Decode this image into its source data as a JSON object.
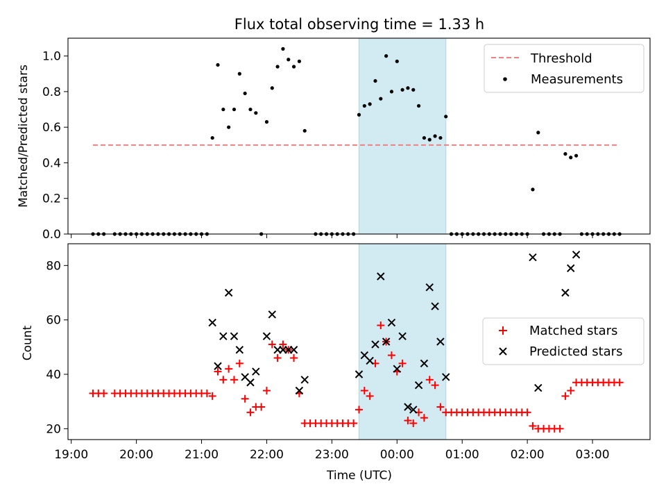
{
  "chart_data": [
    {
      "type": "scatter",
      "title": "Flux total observing time = 1.33 h",
      "xlabel": "",
      "ylabel": "Matched/Predicted stars",
      "ylim": [
        0,
        1.1
      ],
      "yticks": [
        "0.0",
        "0.2",
        "0.4",
        "0.6",
        "0.8",
        "1.0"
      ],
      "grid": false,
      "legend_position": "top-right",
      "legend": [
        "Threshold",
        "Measurements"
      ],
      "threshold": {
        "name": "Threshold",
        "value": 0.5,
        "x_start": "19:20",
        "x_end": "03:25",
        "color": "#f08080"
      },
      "highlight": {
        "start": "23:25",
        "end": "00:45",
        "color": "#add8e6"
      },
      "series": [
        {
          "name": "Measurements",
          "color": "#000000",
          "points": [
            [
              "19:20",
              0
            ],
            [
              "19:25",
              0
            ],
            [
              "19:30",
              0
            ],
            [
              "19:40",
              0
            ],
            [
              "19:45",
              0
            ],
            [
              "19:50",
              0
            ],
            [
              "19:55",
              0
            ],
            [
              "20:00",
              0
            ],
            [
              "20:05",
              0
            ],
            [
              "20:10",
              0
            ],
            [
              "20:15",
              0
            ],
            [
              "20:20",
              0
            ],
            [
              "20:25",
              0
            ],
            [
              "20:30",
              0
            ],
            [
              "20:35",
              0
            ],
            [
              "20:40",
              0
            ],
            [
              "20:45",
              0
            ],
            [
              "20:50",
              0
            ],
            [
              "20:55",
              0
            ],
            [
              "21:00",
              0
            ],
            [
              "21:05",
              0
            ],
            [
              "21:10",
              0.54
            ],
            [
              "21:15",
              0.95
            ],
            [
              "21:20",
              0.7
            ],
            [
              "21:25",
              0.6
            ],
            [
              "21:30",
              0.7
            ],
            [
              "21:35",
              0.9
            ],
            [
              "21:40",
              0.79
            ],
            [
              "21:45",
              0.7
            ],
            [
              "21:50",
              0.68
            ],
            [
              "21:55",
              0
            ],
            [
              "22:00",
              0.63
            ],
            [
              "22:05",
              0.82
            ],
            [
              "22:10",
              0.94
            ],
            [
              "22:15",
              1.04
            ],
            [
              "22:20",
              0.98
            ],
            [
              "22:25",
              0.94
            ],
            [
              "22:30",
              0.97
            ],
            [
              "22:35",
              0.58
            ],
            [
              "22:45",
              0
            ],
            [
              "22:50",
              0
            ],
            [
              "22:55",
              0
            ],
            [
              "23:00",
              0
            ],
            [
              "23:05",
              0
            ],
            [
              "23:10",
              0
            ],
            [
              "23:15",
              0
            ],
            [
              "23:20",
              0
            ],
            [
              "23:25",
              0.67
            ],
            [
              "23:30",
              0.72
            ],
            [
              "23:35",
              0.73
            ],
            [
              "23:40",
              0.86
            ],
            [
              "23:45",
              0.76
            ],
            [
              "23:50",
              1.0
            ],
            [
              "23:55",
              0.8
            ],
            [
              "00:00",
              0.97
            ],
            [
              "00:05",
              0.81
            ],
            [
              "00:10",
              0.82
            ],
            [
              "00:15",
              0.81
            ],
            [
              "00:20",
              0.72
            ],
            [
              "00:25",
              0.54
            ],
            [
              "00:30",
              0.53
            ],
            [
              "00:35",
              0.55
            ],
            [
              "00:40",
              0.54
            ],
            [
              "00:45",
              0.66
            ],
            [
              "00:50",
              0
            ],
            [
              "00:55",
              0
            ],
            [
              "01:00",
              0
            ],
            [
              "01:05",
              0
            ],
            [
              "01:10",
              0
            ],
            [
              "01:15",
              0
            ],
            [
              "01:20",
              0
            ],
            [
              "01:25",
              0
            ],
            [
              "01:30",
              0
            ],
            [
              "01:35",
              0
            ],
            [
              "01:40",
              0
            ],
            [
              "01:45",
              0
            ],
            [
              "01:50",
              0
            ],
            [
              "01:55",
              0
            ],
            [
              "02:00",
              0
            ],
            [
              "02:05",
              0.25
            ],
            [
              "02:10",
              0.57
            ],
            [
              "02:15",
              0
            ],
            [
              "02:20",
              0
            ],
            [
              "02:25",
              0
            ],
            [
              "02:30",
              0
            ],
            [
              "02:35",
              0.45
            ],
            [
              "02:40",
              0.43
            ],
            [
              "02:45",
              0.44
            ],
            [
              "02:50",
              0
            ],
            [
              "02:55",
              0
            ],
            [
              "03:00",
              0
            ],
            [
              "03:05",
              0
            ],
            [
              "03:10",
              0
            ],
            [
              "03:15",
              0
            ],
            [
              "03:20",
              0
            ],
            [
              "03:25",
              0
            ]
          ]
        }
      ]
    },
    {
      "type": "scatter",
      "title": "",
      "xlabel": "Time (UTC)",
      "ylabel": "Count",
      "ylim": [
        16,
        88
      ],
      "yticks": [
        "20",
        "40",
        "60",
        "80"
      ],
      "xticks": [
        "19:00",
        "20:00",
        "21:00",
        "22:00",
        "23:00",
        "00:00",
        "01:00",
        "02:00",
        "03:00"
      ],
      "xlim": [
        "18:57",
        "03:53"
      ],
      "grid": false,
      "legend_position": "center-right",
      "legend": [
        "Matched stars",
        "Predicted stars"
      ],
      "highlight": {
        "start": "23:25",
        "end": "00:45",
        "color": "#add8e6"
      },
      "series": [
        {
          "name": "Matched stars",
          "marker": "plus",
          "color": "#ff0000",
          "points": [
            [
              "19:20",
              33
            ],
            [
              "19:25",
              33
            ],
            [
              "19:30",
              33
            ],
            [
              "19:40",
              33
            ],
            [
              "19:45",
              33
            ],
            [
              "19:50",
              33
            ],
            [
              "19:55",
              33
            ],
            [
              "20:00",
              33
            ],
            [
              "20:05",
              33
            ],
            [
              "20:10",
              33
            ],
            [
              "20:15",
              33
            ],
            [
              "20:20",
              33
            ],
            [
              "20:25",
              33
            ],
            [
              "20:30",
              33
            ],
            [
              "20:35",
              33
            ],
            [
              "20:40",
              33
            ],
            [
              "20:45",
              33
            ],
            [
              "20:50",
              33
            ],
            [
              "20:55",
              33
            ],
            [
              "21:00",
              33
            ],
            [
              "21:05",
              33
            ],
            [
              "21:10",
              32
            ],
            [
              "21:15",
              41
            ],
            [
              "21:20",
              38
            ],
            [
              "21:25",
              42
            ],
            [
              "21:30",
              38
            ],
            [
              "21:35",
              44
            ],
            [
              "21:40",
              31
            ],
            [
              "21:45",
              26
            ],
            [
              "21:50",
              28
            ],
            [
              "21:55",
              28
            ],
            [
              "22:00",
              34
            ],
            [
              "22:05",
              51
            ],
            [
              "22:10",
              46
            ],
            [
              "22:15",
              51
            ],
            [
              "22:20",
              49
            ],
            [
              "22:25",
              46
            ],
            [
              "22:30",
              33
            ],
            [
              "22:35",
              22
            ],
            [
              "22:40",
              22
            ],
            [
              "22:45",
              22
            ],
            [
              "22:50",
              22
            ],
            [
              "22:55",
              22
            ],
            [
              "23:00",
              22
            ],
            [
              "23:05",
              22
            ],
            [
              "23:10",
              22
            ],
            [
              "23:15",
              22
            ],
            [
              "23:20",
              22
            ],
            [
              "23:25",
              27
            ],
            [
              "23:30",
              34
            ],
            [
              "23:35",
              32
            ],
            [
              "23:40",
              44
            ],
            [
              "23:45",
              58
            ],
            [
              "23:50",
              52
            ],
            [
              "23:55",
              47
            ],
            [
              "00:00",
              41
            ],
            [
              "00:05",
              44
            ],
            [
              "00:10",
              23
            ],
            [
              "00:15",
              22
            ],
            [
              "00:20",
              26
            ],
            [
              "00:25",
              24
            ],
            [
              "00:30",
              38
            ],
            [
              "00:35",
              36
            ],
            [
              "00:40",
              28
            ],
            [
              "00:45",
              26
            ],
            [
              "00:50",
              26
            ],
            [
              "00:55",
              26
            ],
            [
              "01:00",
              26
            ],
            [
              "01:05",
              26
            ],
            [
              "01:10",
              26
            ],
            [
              "01:15",
              26
            ],
            [
              "01:20",
              26
            ],
            [
              "01:25",
              26
            ],
            [
              "01:30",
              26
            ],
            [
              "01:35",
              26
            ],
            [
              "01:40",
              26
            ],
            [
              "01:45",
              26
            ],
            [
              "01:50",
              26
            ],
            [
              "01:55",
              26
            ],
            [
              "02:00",
              26
            ],
            [
              "02:05",
              21
            ],
            [
              "02:10",
              20
            ],
            [
              "02:15",
              20
            ],
            [
              "02:20",
              20
            ],
            [
              "02:25",
              20
            ],
            [
              "02:30",
              20
            ],
            [
              "02:35",
              32
            ],
            [
              "02:40",
              34
            ],
            [
              "02:45",
              37
            ],
            [
              "02:50",
              37
            ],
            [
              "02:55",
              37
            ],
            [
              "03:00",
              37
            ],
            [
              "03:05",
              37
            ],
            [
              "03:10",
              37
            ],
            [
              "03:15",
              37
            ],
            [
              "03:20",
              37
            ],
            [
              "03:25",
              37
            ]
          ]
        },
        {
          "name": "Predicted stars",
          "marker": "x",
          "color": "#000000",
          "points": [
            [
              "21:10",
              59
            ],
            [
              "21:15",
              43
            ],
            [
              "21:20",
              54
            ],
            [
              "21:25",
              70
            ],
            [
              "21:30",
              54
            ],
            [
              "21:35",
              49
            ],
            [
              "21:40",
              39
            ],
            [
              "21:45",
              37
            ],
            [
              "21:50",
              41
            ],
            [
              "22:00",
              54
            ],
            [
              "22:05",
              62
            ],
            [
              "22:10",
              49
            ],
            [
              "22:15",
              49
            ],
            [
              "22:20",
              49
            ],
            [
              "22:25",
              49
            ],
            [
              "22:30",
              34
            ],
            [
              "22:35",
              38
            ],
            [
              "23:25",
              40
            ],
            [
              "23:30",
              47
            ],
            [
              "23:35",
              45
            ],
            [
              "23:40",
              51
            ],
            [
              "23:45",
              76
            ],
            [
              "23:50",
              52
            ],
            [
              "23:55",
              59
            ],
            [
              "00:00",
              42
            ],
            [
              "00:05",
              54
            ],
            [
              "00:10",
              28
            ],
            [
              "00:15",
              27
            ],
            [
              "00:20",
              36
            ],
            [
              "00:25",
              44
            ],
            [
              "00:30",
              72
            ],
            [
              "00:35",
              65
            ],
            [
              "00:40",
              52
            ],
            [
              "00:45",
              39
            ],
            [
              "02:05",
              83
            ],
            [
              "02:10",
              35
            ],
            [
              "02:35",
              70
            ],
            [
              "02:40",
              79
            ],
            [
              "02:45",
              84
            ]
          ]
        }
      ]
    }
  ]
}
